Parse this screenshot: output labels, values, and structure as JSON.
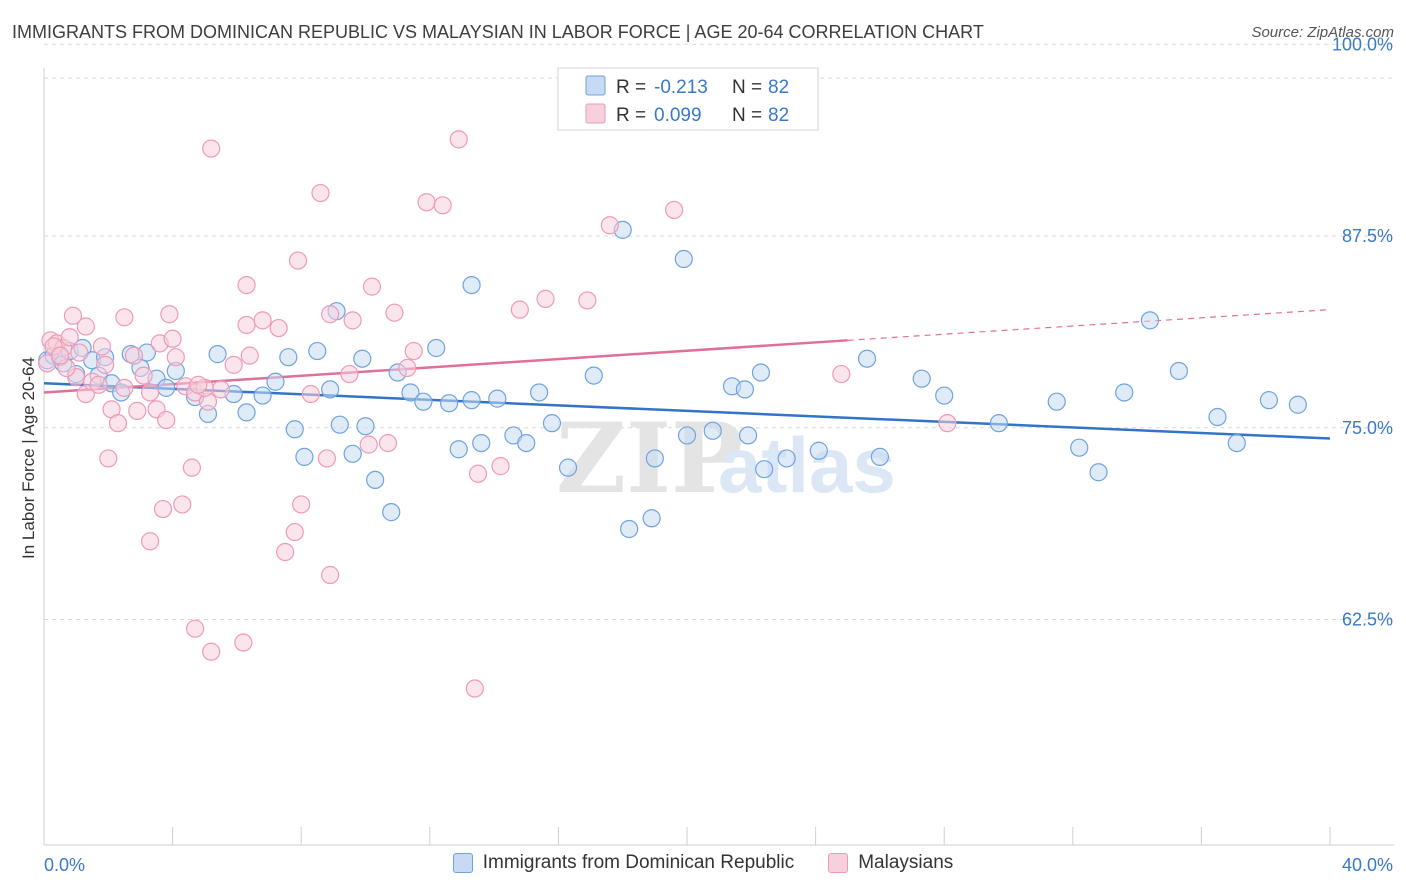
{
  "header": {
    "title": "IMMIGRANTS FROM DOMINICAN REPUBLIC VS MALAYSIAN IN LABOR FORCE | AGE 20-64 CORRELATION CHART",
    "source": "Source: ZipAtlas.com"
  },
  "colors": {
    "blue": "#6fa3df",
    "blue_fill": "#c7daf3",
    "blue_line": "#3374c9",
    "pink": "#ef9ab5",
    "pink_fill": "#f8d0dd",
    "pink_line": "#e0709a",
    "axis_text": "#3a78c9",
    "grid": "#d9d9d9"
  },
  "watermark": {
    "zip": "ZIP",
    "atlas": "atlas"
  },
  "chart_data": {
    "type": "scatter",
    "title": "IMMIGRANTS FROM DOMINICAN REPUBLIC VS MALAYSIAN IN LABOR FORCE | AGE 20-64 CORRELATION CHART",
    "xlabel": "",
    "ylabel": "In Labor Force | Age 20-64",
    "xlim": [
      0,
      40
    ],
    "ylim": [
      50,
      101
    ],
    "x_tick_labels": [
      "0.0%",
      "40.0%"
    ],
    "y_ticks": [
      62.5,
      75.0,
      87.5,
      100.0
    ],
    "y_tick_labels": [
      "62.5%",
      "75.0%",
      "87.5%",
      "100.0%"
    ],
    "grid": true,
    "legend": {
      "placement": "top-center",
      "entries": [
        {
          "r_label": "R =",
          "r_value": "-0.213",
          "n_label": "N =",
          "n_value": "82"
        },
        {
          "r_label": "R =",
          "r_value": "0.099",
          "n_label": "N =",
          "n_value": "82"
        }
      ]
    },
    "series": [
      {
        "name": "Immigrants from Dominican Republic",
        "color": "#6fa3df",
        "trend": {
          "x": [
            0,
            40
          ],
          "y": [
            77.9,
            74.3
          ]
        },
        "points": [
          [
            0.1,
            79.4
          ],
          [
            0.3,
            79.7
          ],
          [
            0.5,
            79.6
          ],
          [
            0.6,
            79.2
          ],
          [
            0.8,
            80.0
          ],
          [
            1.0,
            78.5
          ],
          [
            1.2,
            80.2
          ],
          [
            1.5,
            79.4
          ],
          [
            1.7,
            78.4
          ],
          [
            1.9,
            79.6
          ],
          [
            2.1,
            77.9
          ],
          [
            2.4,
            77.3
          ],
          [
            2.7,
            79.8
          ],
          [
            3.0,
            78.9
          ],
          [
            3.2,
            79.9
          ],
          [
            3.5,
            78.2
          ],
          [
            3.8,
            77.6
          ],
          [
            4.1,
            78.7
          ],
          [
            4.7,
            77.0
          ],
          [
            5.1,
            75.9
          ],
          [
            5.4,
            79.8
          ],
          [
            5.9,
            77.2
          ],
          [
            6.3,
            76.0
          ],
          [
            6.8,
            77.1
          ],
          [
            7.2,
            78.0
          ],
          [
            7.6,
            79.6
          ],
          [
            7.8,
            74.9
          ],
          [
            8.1,
            73.1
          ],
          [
            8.5,
            80.0
          ],
          [
            8.9,
            77.5
          ],
          [
            9.2,
            75.2
          ],
          [
            9.6,
            73.3
          ],
          [
            9.9,
            79.5
          ],
          [
            10.3,
            71.6
          ],
          [
            10.8,
            69.5
          ],
          [
            11.0,
            78.6
          ],
          [
            11.4,
            77.3
          ],
          [
            11.8,
            76.7
          ],
          [
            12.2,
            80.2
          ],
          [
            12.6,
            76.6
          ],
          [
            12.9,
            73.6
          ],
          [
            13.3,
            76.8
          ],
          [
            13.6,
            74.0
          ],
          [
            14.1,
            76.9
          ],
          [
            14.6,
            74.5
          ],
          [
            15.0,
            74.0
          ],
          [
            15.4,
            77.3
          ],
          [
            15.8,
            75.3
          ],
          [
            16.3,
            72.4
          ],
          [
            17.1,
            78.4
          ],
          [
            18.2,
            68.4
          ],
          [
            18.9,
            69.1
          ],
          [
            19.0,
            73.0
          ],
          [
            20.0,
            74.5
          ],
          [
            20.8,
            74.8
          ],
          [
            21.4,
            77.7
          ],
          [
            21.9,
            74.5
          ],
          [
            21.8,
            77.5
          ],
          [
            22.4,
            72.3
          ],
          [
            22.3,
            78.6
          ],
          [
            23.1,
            73.0
          ],
          [
            24.1,
            73.5
          ],
          [
            25.6,
            79.5
          ],
          [
            26.0,
            73.1
          ],
          [
            27.3,
            78.2
          ],
          [
            28.0,
            77.1
          ],
          [
            29.7,
            75.3
          ],
          [
            31.5,
            76.7
          ],
          [
            32.2,
            73.7
          ],
          [
            32.8,
            72.1
          ],
          [
            33.6,
            77.3
          ],
          [
            34.4,
            82.0
          ],
          [
            35.3,
            78.7
          ],
          [
            36.5,
            75.7
          ],
          [
            37.1,
            74.0
          ],
          [
            38.1,
            76.8
          ],
          [
            39.0,
            76.5
          ],
          [
            13.3,
            84.3
          ],
          [
            18.0,
            87.9
          ],
          [
            19.9,
            86.0
          ],
          [
            9.1,
            82.6
          ],
          [
            10.0,
            75.1
          ]
        ]
      },
      {
        "name": "Malaysians",
        "color": "#ef9ab5",
        "trend": {
          "x": [
            0,
            25
          ],
          "y": [
            77.3,
            80.7
          ]
        },
        "trend_dashed": {
          "x": [
            25,
            40
          ],
          "y": [
            80.7,
            82.7
          ]
        },
        "points": [
          [
            0.1,
            79.2
          ],
          [
            0.2,
            80.7
          ],
          [
            0.4,
            80.5
          ],
          [
            0.6,
            80.2
          ],
          [
            0.8,
            80.9
          ],
          [
            1.0,
            78.3
          ],
          [
            1.1,
            79.9
          ],
          [
            1.3,
            77.2
          ],
          [
            1.5,
            78.0
          ],
          [
            1.7,
            77.8
          ],
          [
            1.9,
            79.1
          ],
          [
            2.1,
            76.2
          ],
          [
            2.3,
            75.3
          ],
          [
            2.5,
            77.6
          ],
          [
            2.8,
            79.7
          ],
          [
            3.1,
            78.4
          ],
          [
            3.3,
            77.3
          ],
          [
            3.5,
            76.2
          ],
          [
            3.8,
            75.5
          ],
          [
            4.1,
            79.6
          ],
          [
            4.4,
            77.7
          ],
          [
            4.7,
            77.3
          ],
          [
            5.1,
            76.7
          ],
          [
            5.5,
            77.5
          ],
          [
            5.9,
            79.1
          ],
          [
            6.3,
            81.7
          ],
          [
            6.8,
            82.0
          ],
          [
            7.3,
            81.5
          ],
          [
            7.9,
            85.9
          ],
          [
            8.3,
            77.2
          ],
          [
            8.9,
            82.4
          ],
          [
            9.5,
            78.5
          ],
          [
            10.1,
            73.9
          ],
          [
            10.7,
            74.0
          ],
          [
            11.3,
            78.9
          ],
          [
            11.9,
            89.7
          ],
          [
            12.4,
            89.5
          ],
          [
            12.9,
            93.8
          ],
          [
            13.5,
            72.0
          ],
          [
            14.2,
            72.5
          ],
          [
            14.8,
            82.7
          ],
          [
            15.6,
            83.4
          ],
          [
            16.9,
            83.3
          ],
          [
            17.6,
            88.2
          ],
          [
            19.6,
            89.2
          ],
          [
            2.0,
            73.0
          ],
          [
            3.3,
            67.6
          ],
          [
            3.7,
            69.7
          ],
          [
            4.6,
            72.4
          ],
          [
            4.7,
            61.9
          ],
          [
            5.2,
            60.4
          ],
          [
            6.2,
            61.0
          ],
          [
            6.4,
            79.7
          ],
          [
            7.5,
            66.9
          ],
          [
            7.8,
            68.2
          ],
          [
            8.0,
            70.0
          ],
          [
            8.8,
            73.0
          ],
          [
            8.6,
            90.3
          ],
          [
            8.9,
            65.4
          ],
          [
            9.6,
            82.0
          ],
          [
            10.2,
            84.2
          ],
          [
            10.9,
            82.5
          ],
          [
            11.5,
            80.0
          ],
          [
            13.4,
            58.0
          ],
          [
            5.2,
            93.2
          ],
          [
            6.3,
            84.3
          ],
          [
            5.0,
            77.6
          ],
          [
            2.5,
            82.2
          ],
          [
            1.8,
            80.3
          ],
          [
            1.3,
            81.6
          ],
          [
            0.9,
            82.3
          ],
          [
            0.7,
            78.9
          ],
          [
            24.8,
            78.5
          ],
          [
            28.1,
            75.3
          ],
          [
            3.9,
            82.4
          ],
          [
            4.8,
            77.8
          ],
          [
            3.6,
            80.5
          ],
          [
            0.3,
            80.3
          ],
          [
            0.5,
            79.7
          ],
          [
            2.9,
            76.1
          ],
          [
            4.0,
            80.8
          ],
          [
            4.3,
            70.0
          ]
        ]
      }
    ]
  },
  "bottom_legend": {
    "series1": "Immigrants from Dominican Republic",
    "series2": "Malaysians"
  }
}
